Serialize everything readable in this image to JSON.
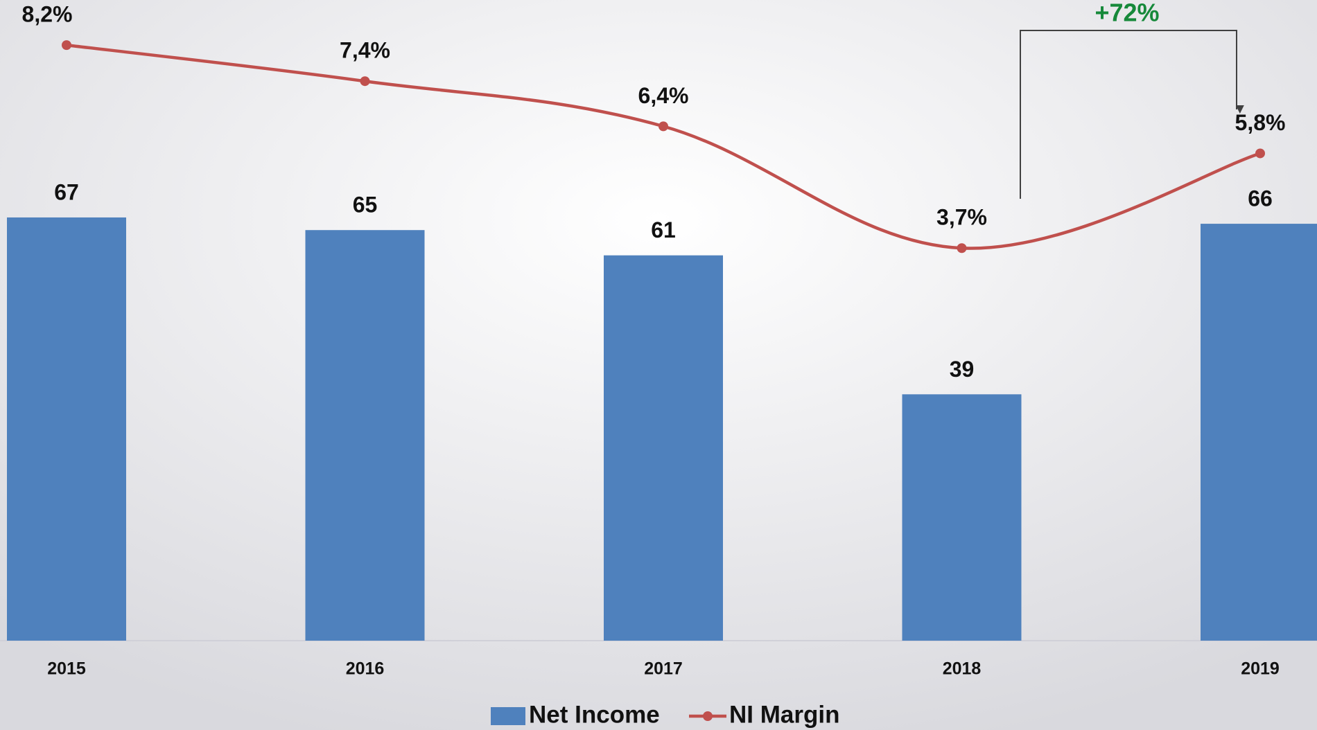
{
  "chart_data": {
    "type": "bar",
    "categories": [
      "2015",
      "2016",
      "2017",
      "2018",
      "2019"
    ],
    "series": [
      {
        "name": "Net Income",
        "type": "bar",
        "color": "#4f81bd",
        "values": [
          67,
          65,
          61,
          39,
          66
        ]
      },
      {
        "name": "NI Margin",
        "type": "line",
        "axis": "y2",
        "color": "#c0504d",
        "values": [
          8.2,
          7.4,
          6.4,
          3.7,
          5.8
        ],
        "value_labels": [
          "8,2%",
          "7,4%",
          "6,4%",
          "3,7%",
          "5,8%"
        ]
      }
    ],
    "ylim": [
      0,
      100
    ],
    "y2lim": [
      -5,
      9
    ],
    "annotation": "+72%",
    "annotation_color": "#16893a",
    "legend": "bottom"
  }
}
